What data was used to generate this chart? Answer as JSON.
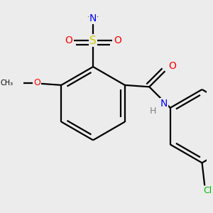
{
  "background_color": "#ececec",
  "bond_color": "#000000",
  "colors": {
    "N": "#0000ff",
    "O": "#ff0000",
    "S": "#cccc00",
    "Cl": "#00bb00",
    "C": "#000000",
    "H": "#7f7f7f"
  },
  "lw": 1.6,
  "dbo": 0.045,
  "ring_r": 0.42
}
